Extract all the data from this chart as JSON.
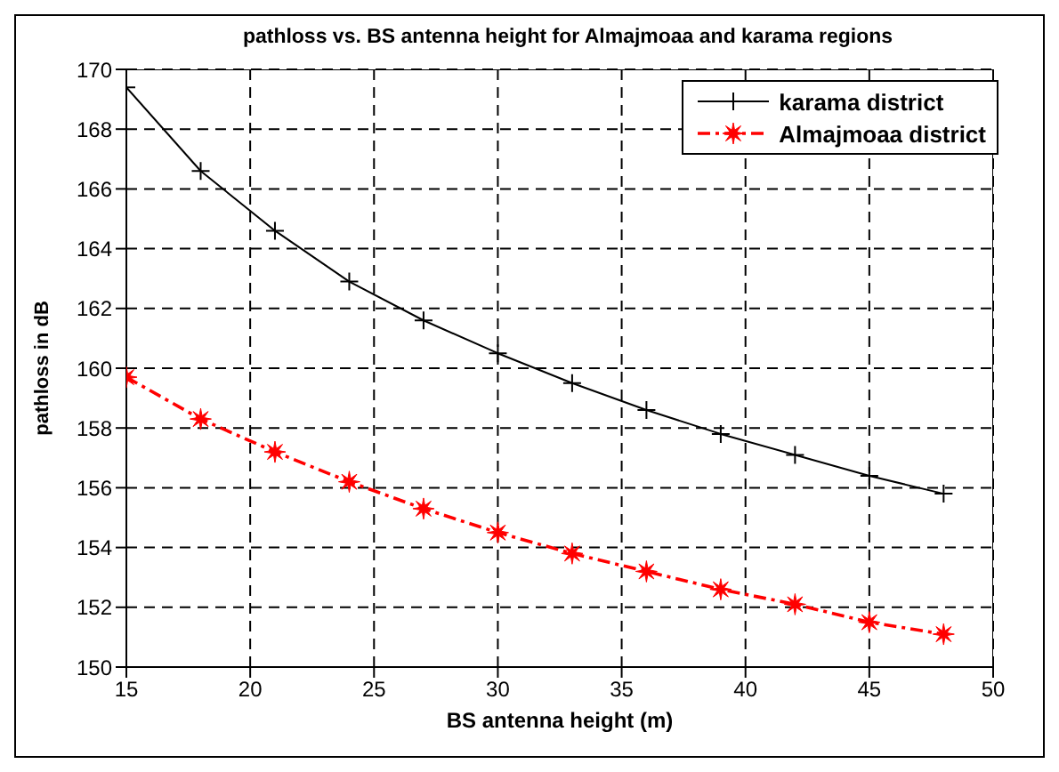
{
  "chart_data": {
    "type": "line",
    "title": "pathloss vs. BS antenna height for Almajmoaa and karama regions",
    "xlabel": "BS antenna height (m)",
    "ylabel": "pathloss in dB",
    "x": [
      15,
      18,
      21,
      24,
      27,
      30,
      33,
      36,
      39,
      42,
      45,
      48
    ],
    "series": [
      {
        "name": "karama district",
        "color": "#000000",
        "marker": "cross",
        "line_style": "solid",
        "values": [
          169.4,
          166.6,
          164.6,
          162.9,
          161.6,
          160.5,
          159.5,
          158.6,
          157.8,
          157.1,
          156.4,
          155.8
        ]
      },
      {
        "name": "Almajmoaa district",
        "color": "#ff0000",
        "marker": "star",
        "line_style": "dashed",
        "values": [
          159.7,
          158.3,
          157.2,
          156.2,
          155.3,
          154.5,
          153.8,
          153.2,
          152.6,
          152.1,
          151.5,
          151.1
        ]
      }
    ],
    "xlim": [
      15,
      50
    ],
    "xticks": [
      15,
      20,
      25,
      30,
      35,
      40,
      45,
      50
    ],
    "ylim": [
      150,
      170
    ],
    "yticks": [
      150,
      152,
      154,
      156,
      158,
      160,
      162,
      164,
      166,
      168,
      170
    ],
    "grid": true,
    "legend": "top right"
  }
}
